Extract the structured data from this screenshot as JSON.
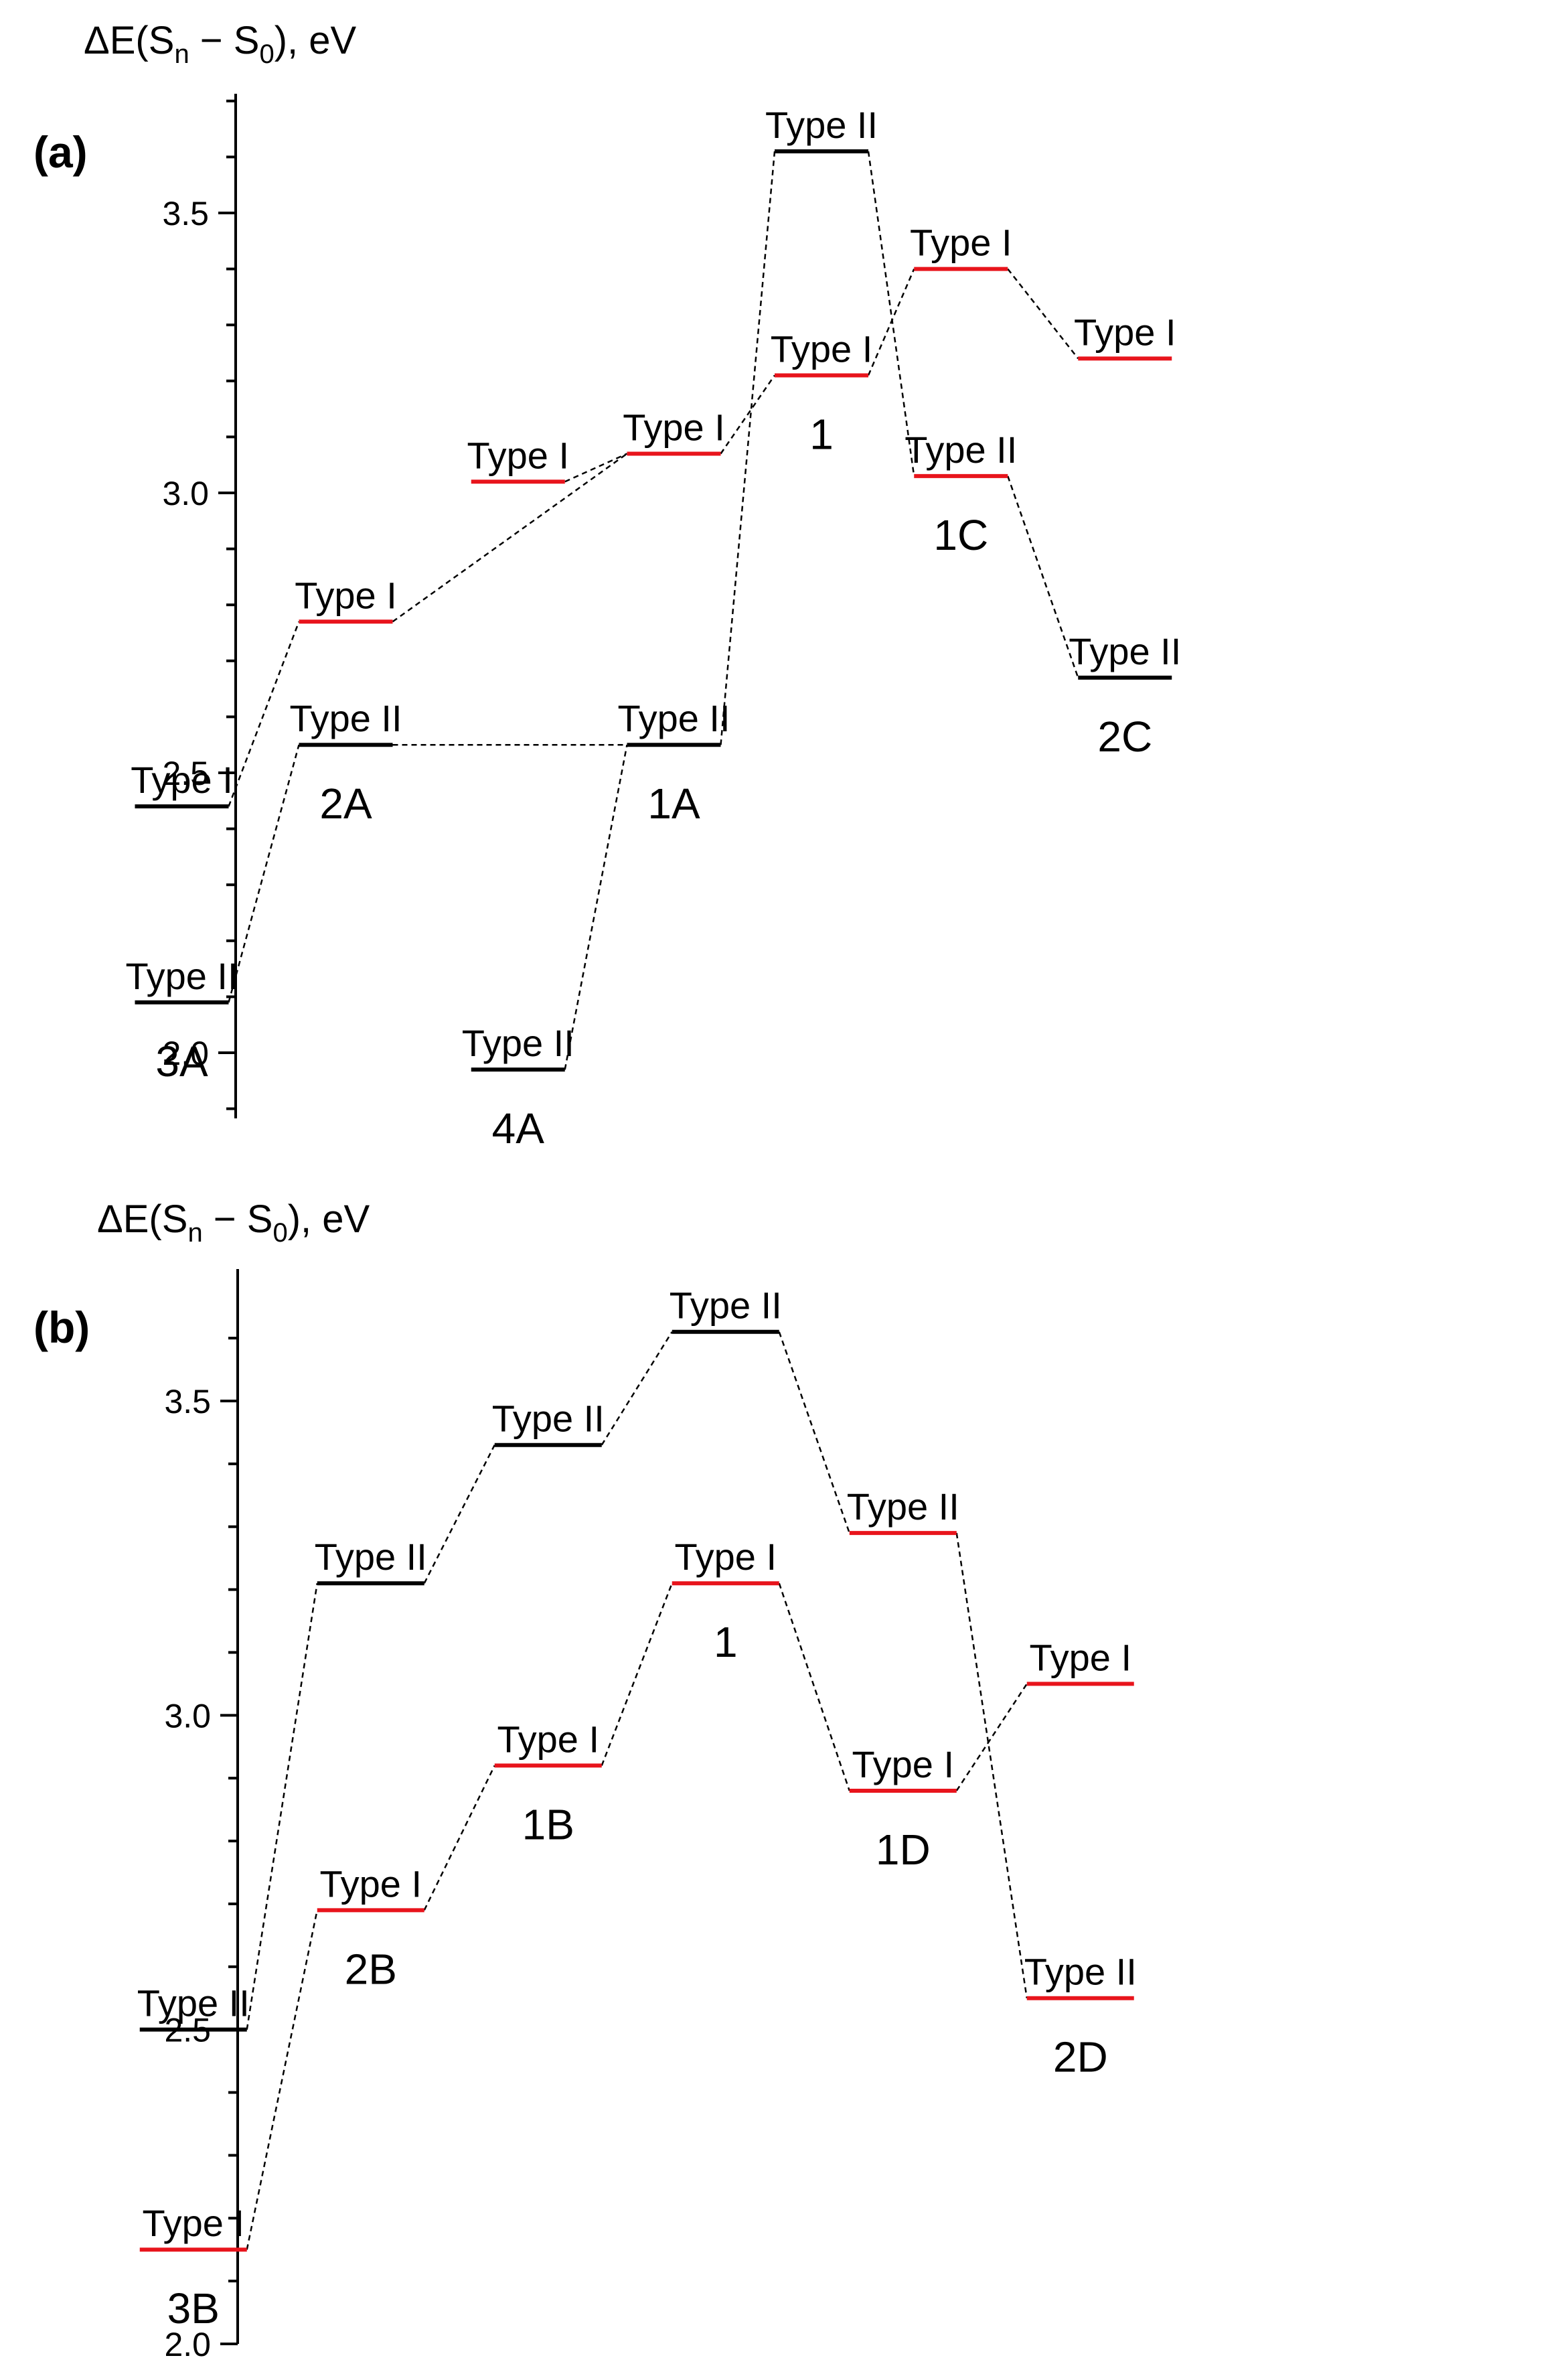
{
  "chart_data": [
    {
      "type": "energy-level-diagram",
      "panel": "(a)",
      "ylabel_prefix": "ΔE(S",
      "ylabel_sub1": "n",
      "ylabel_mid": " − S",
      "ylabel_sub2": "0",
      "ylabel_suffix": "), eV",
      "ylim": [
        1.9,
        3.72
      ],
      "yticks": [
        "2.0",
        "2.5",
        "3.0",
        "3.5"
      ],
      "colors": {
        "Type I": "#e8141c",
        "Type II": "#000000"
      },
      "levels": [
        {
          "id": "3A-I",
          "x": 0.7,
          "y": 2.44,
          "label": "Type I",
          "color": "#000000"
        },
        {
          "id": "3A-II",
          "x": 0.7,
          "y": 2.09,
          "label": "Type II",
          "color": "#000000",
          "species": "3A"
        },
        {
          "id": "2A-I",
          "x": 1.7,
          "y": 2.77,
          "label": "Type I",
          "color": "#e8141c"
        },
        {
          "id": "2A-II",
          "x": 1.7,
          "y": 2.55,
          "label": "Type II",
          "color": "#000000",
          "species": "2A"
        },
        {
          "id": "free-I",
          "x": 2.75,
          "y": 3.02,
          "label": "Type I",
          "color": "#e8141c"
        },
        {
          "id": "4A-II",
          "x": 2.75,
          "y": 1.97,
          "label": "Type II",
          "color": "#000000",
          "species": "4A"
        },
        {
          "id": "1A-I",
          "x": 3.7,
          "y": 3.07,
          "label": "Type I",
          "color": "#e8141c"
        },
        {
          "id": "1A-II",
          "x": 3.7,
          "y": 2.55,
          "label": "Type II",
          "color": "#000000",
          "species": "1A"
        },
        {
          "id": "1-II",
          "x": 4.6,
          "y": 3.61,
          "label": "Type II",
          "color": "#000000"
        },
        {
          "id": "1-I",
          "x": 4.6,
          "y": 3.21,
          "label": "Type I",
          "color": "#e8141c",
          "species": "1"
        },
        {
          "id": "1C-I",
          "x": 5.45,
          "y": 3.4,
          "label": "Type I",
          "color": "#e8141c"
        },
        {
          "id": "1C-II",
          "x": 5.45,
          "y": 3.03,
          "label": "Type II",
          "color": "#e8141c",
          "species": "1C"
        },
        {
          "id": "2C-I",
          "x": 6.45,
          "y": 3.24,
          "label": "Type I",
          "color": "#e8141c"
        },
        {
          "id": "2C-II",
          "x": 6.45,
          "y": 2.67,
          "label": "Type II",
          "color": "#000000",
          "species": "2C"
        }
      ],
      "connections": [
        [
          "3A-I",
          "2A-I"
        ],
        [
          "3A-II",
          "2A-II"
        ],
        [
          "2A-I",
          "1A-I"
        ],
        [
          "2A-II",
          "1A-II"
        ],
        [
          "free-I",
          "1A-I"
        ],
        [
          "4A-II",
          "1A-II"
        ],
        [
          "1A-I",
          "1-I"
        ],
        [
          "1A-II",
          "1-II"
        ],
        [
          "1-I",
          "1C-I"
        ],
        [
          "1-II",
          "1C-II"
        ],
        [
          "1C-I",
          "2C-I"
        ],
        [
          "1C-II",
          "2C-II"
        ]
      ]
    },
    {
      "type": "energy-level-diagram",
      "panel": "(b)",
      "ylabel_prefix": "ΔE(S",
      "ylabel_sub1": "n",
      "ylabel_mid": " − S",
      "ylabel_sub2": "0",
      "ylabel_suffix": "), eV",
      "ylim": [
        2.0,
        3.7
      ],
      "yticks": [
        "2.0",
        "2.5",
        "3.0",
        "3.5"
      ],
      "colors": {
        "Type I": "#e8141c",
        "Type II": "#000000"
      },
      "levels": [
        {
          "id": "3B-II",
          "x": 0.75,
          "y": 2.5,
          "label": "Type II",
          "color": "#000000"
        },
        {
          "id": "3B-I",
          "x": 0.75,
          "y": 2.15,
          "label": "Type I",
          "color": "#e8141c",
          "species": "3B"
        },
        {
          "id": "2B-II",
          "x": 1.75,
          "y": 3.21,
          "label": "Type II",
          "color": "#000000"
        },
        {
          "id": "2B-I",
          "x": 1.75,
          "y": 2.69,
          "label": "Type I",
          "color": "#e8141c",
          "species": "2B"
        },
        {
          "id": "1B-II",
          "x": 2.75,
          "y": 3.43,
          "label": "Type II",
          "color": "#000000"
        },
        {
          "id": "1B-I",
          "x": 2.75,
          "y": 2.92,
          "label": "Type I",
          "color": "#e8141c",
          "species": "1B"
        },
        {
          "id": "1-II",
          "x": 3.75,
          "y": 3.61,
          "label": "Type II",
          "color": "#000000"
        },
        {
          "id": "1-I",
          "x": 3.75,
          "y": 3.21,
          "label": "Type I",
          "color": "#e8141c",
          "species": "1"
        },
        {
          "id": "1D-II",
          "x": 4.75,
          "y": 3.29,
          "label": "Type II",
          "color": "#e8141c"
        },
        {
          "id": "1D-I",
          "x": 4.75,
          "y": 2.88,
          "label": "Type I",
          "color": "#e8141c",
          "species": "1D"
        },
        {
          "id": "2D-I",
          "x": 5.75,
          "y": 3.05,
          "label": "Type I",
          "color": "#e8141c"
        },
        {
          "id": "2D-II",
          "x": 5.75,
          "y": 2.55,
          "label": "Type II",
          "color": "#e8141c",
          "species": "2D"
        }
      ],
      "connections": [
        [
          "3B-II",
          "2B-II"
        ],
        [
          "3B-I",
          "2B-I"
        ],
        [
          "2B-II",
          "1B-II"
        ],
        [
          "2B-I",
          "1B-I"
        ],
        [
          "1B-II",
          "1-II"
        ],
        [
          "1B-I",
          "1-I"
        ],
        [
          "1-II",
          "1D-II"
        ],
        [
          "1-I",
          "1D-I"
        ],
        [
          "1D-II",
          "2D-II"
        ],
        [
          "1D-I",
          "2D-I"
        ]
      ]
    }
  ]
}
